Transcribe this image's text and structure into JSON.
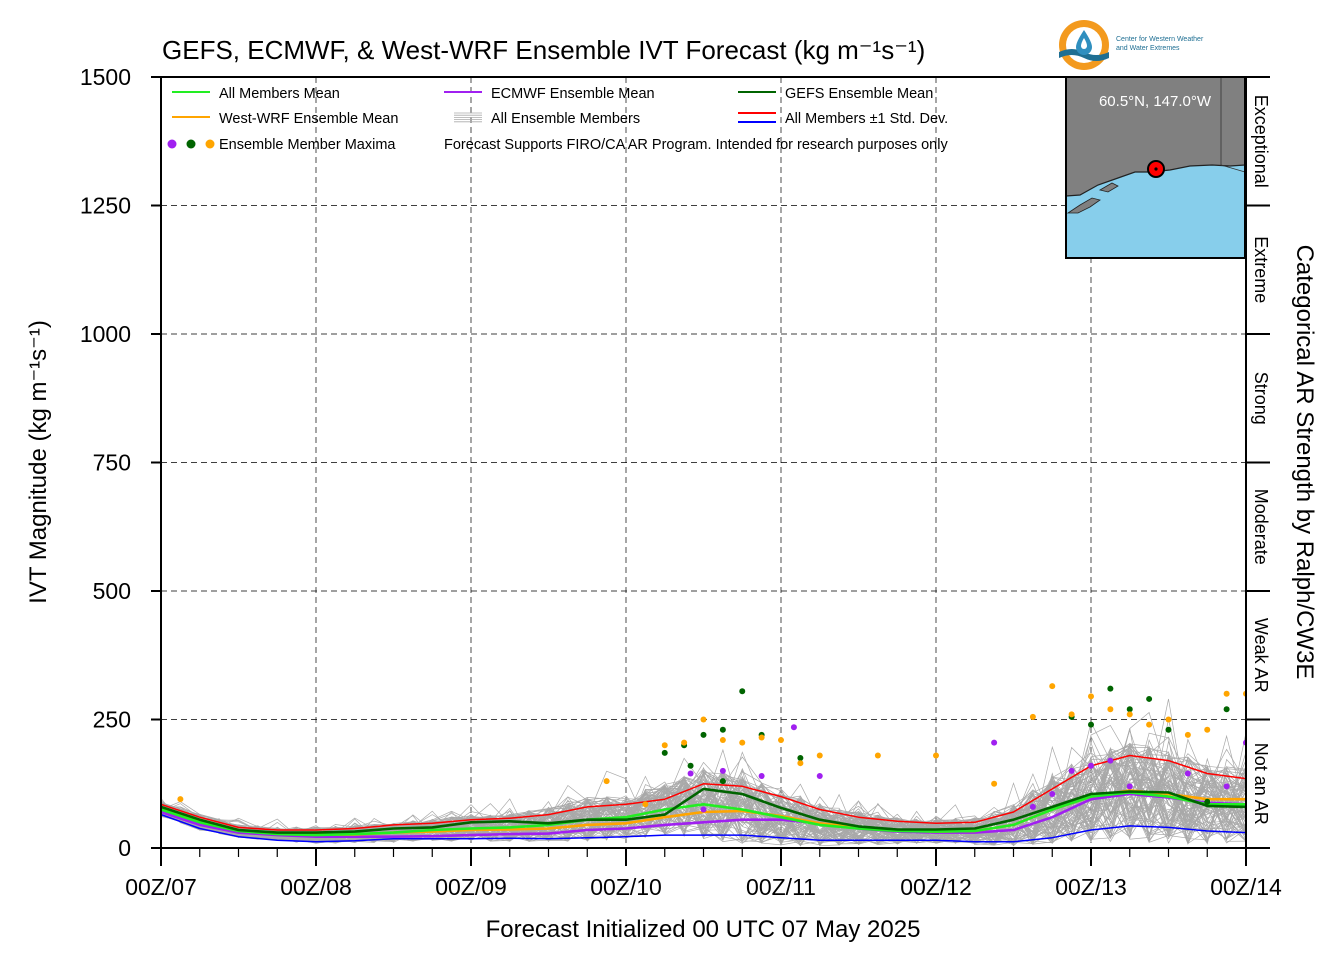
{
  "chart_data": {
    "type": "line",
    "title": "GEFS, ECMWF, & West-WRF Ensemble IVT Forecast (kg m⁻¹s⁻¹)",
    "xlabel": "Forecast Initialized 00 UTC 07 May 2025",
    "ylabel": "IVT Magnitude (kg m⁻¹s⁻¹)",
    "right_label": "Categorical AR Strength by Ralph/CW3E",
    "x_tick_labels": [
      "00Z/07",
      "00Z/08",
      "00Z/09",
      "00Z/10",
      "00Z/11",
      "00Z/12",
      "00Z/13",
      "00Z/14"
    ],
    "x_range_hours": [
      0,
      168
    ],
    "y_ticks": [
      0,
      250,
      500,
      750,
      1000,
      1250,
      1500
    ],
    "ylim": [
      0,
      1500
    ],
    "grid": true,
    "categories": [
      {
        "label": "Not an AR",
        "min": 0,
        "max": 250
      },
      {
        "label": "Weak AR",
        "min": 250,
        "max": 500
      },
      {
        "label": "Moderate",
        "min": 500,
        "max": 750
      },
      {
        "label": "Strong",
        "min": 750,
        "max": 1000
      },
      {
        "label": "Extreme",
        "min": 1000,
        "max": 1250
      },
      {
        "label": "Exceptional",
        "min": 1250,
        "max": 1500
      }
    ],
    "legend": {
      "placement": "top-left",
      "items": [
        {
          "label": "All Members Mean",
          "color": "#22ee22",
          "kind": "line"
        },
        {
          "label": "ECMWF Ensemble Mean",
          "color": "#a020f0",
          "kind": "line"
        },
        {
          "label": "GEFS Ensemble Mean",
          "color": "#006400",
          "kind": "line"
        },
        {
          "label": "West-WRF Ensemble Mean",
          "color": "#ffa500",
          "kind": "line"
        },
        {
          "label": "All Ensemble Members",
          "color": "#aaaaaa",
          "kind": "multiline"
        },
        {
          "label": "All Members ±1 Std. Dev.",
          "color": "#ff0000",
          "color2": "#0000ff",
          "kind": "double"
        },
        {
          "label": "Ensemble Member Maxima",
          "colors": [
            "#a020f0",
            "#006400",
            "#ffa500"
          ],
          "kind": "dots"
        }
      ],
      "note": "Forecast Supports FIRO/CA AR Program. Intended for research purposes only"
    },
    "series": [
      {
        "name": "All Members Mean",
        "color": "#22ee22",
        "x": [
          0,
          6,
          12,
          18,
          24,
          30,
          36,
          42,
          48,
          54,
          60,
          66,
          72,
          78,
          84,
          90,
          96,
          102,
          108,
          114,
          120,
          126,
          132,
          138,
          144,
          150,
          156,
          162,
          168
        ],
        "values": [
          75,
          50,
          33,
          27,
          25,
          27,
          30,
          35,
          38,
          40,
          45,
          55,
          60,
          75,
          85,
          75,
          60,
          45,
          38,
          33,
          32,
          33,
          45,
          75,
          100,
          108,
          100,
          85,
          85
        ]
      },
      {
        "name": "ECMWF Ensemble Mean",
        "color": "#a020f0",
        "x": [
          0,
          6,
          12,
          18,
          24,
          30,
          36,
          42,
          48,
          54,
          60,
          66,
          72,
          78,
          84,
          90,
          96,
          102,
          108,
          114,
          120,
          126,
          132,
          138,
          144,
          150,
          156,
          162,
          168
        ],
        "values": [
          70,
          45,
          30,
          25,
          22,
          22,
          22,
          23,
          25,
          27,
          28,
          35,
          38,
          45,
          50,
          55,
          55,
          48,
          38,
          32,
          30,
          30,
          35,
          60,
          95,
          105,
          98,
          88,
          85
        ]
      },
      {
        "name": "GEFS Ensemble Mean",
        "color": "#006400",
        "x": [
          0,
          6,
          12,
          18,
          24,
          30,
          36,
          42,
          48,
          54,
          60,
          66,
          72,
          78,
          84,
          90,
          96,
          102,
          108,
          114,
          120,
          126,
          132,
          138,
          144,
          150,
          156,
          162,
          168
        ],
        "values": [
          80,
          55,
          35,
          30,
          30,
          32,
          38,
          40,
          50,
          52,
          48,
          55,
          55,
          65,
          115,
          105,
          78,
          55,
          42,
          36,
          36,
          38,
          55,
          80,
          105,
          110,
          108,
          82,
          80
        ]
      },
      {
        "name": "West-WRF Ensemble Mean",
        "color": "#ffa500",
        "x": [
          0,
          6,
          12,
          18,
          24,
          30,
          36,
          42,
          48,
          54,
          60,
          66,
          72,
          78,
          84,
          90,
          96,
          102,
          108,
          114,
          120,
          126,
          132,
          138,
          144,
          150,
          156,
          162,
          168
        ],
        "values": [
          78,
          55,
          35,
          28,
          26,
          26,
          30,
          32,
          35,
          36,
          38,
          45,
          48,
          60,
          70,
          72,
          62,
          48,
          40,
          34,
          32,
          33,
          45,
          75,
          100,
          112,
          105,
          95,
          95
        ]
      },
      {
        "name": "All Members +1 Std. Dev.",
        "color": "#ff0000",
        "x": [
          0,
          6,
          12,
          18,
          24,
          30,
          36,
          42,
          48,
          54,
          60,
          66,
          72,
          78,
          84,
          90,
          96,
          102,
          108,
          114,
          120,
          126,
          132,
          138,
          144,
          150,
          156,
          162,
          168
        ],
        "values": [
          85,
          60,
          40,
          35,
          35,
          38,
          45,
          48,
          55,
          58,
          65,
          80,
          85,
          95,
          125,
          120,
          100,
          75,
          60,
          52,
          48,
          50,
          70,
          115,
          160,
          180,
          170,
          145,
          135
        ]
      },
      {
        "name": "All Members -1 Std. Dev.",
        "color": "#0000ff",
        "x": [
          0,
          6,
          12,
          18,
          24,
          30,
          36,
          42,
          48,
          54,
          60,
          66,
          72,
          78,
          84,
          90,
          96,
          102,
          108,
          114,
          120,
          126,
          132,
          138,
          144,
          150,
          156,
          162,
          168
        ],
        "values": [
          65,
          38,
          22,
          15,
          12,
          14,
          18,
          18,
          18,
          19,
          18,
          20,
          22,
          25,
          25,
          25,
          20,
          15,
          15,
          15,
          15,
          12,
          12,
          20,
          35,
          43,
          40,
          33,
          30
        ]
      }
    ],
    "maxima": {
      "ECMWF": {
        "color": "#a020f0",
        "points": [
          [
            82,
            145
          ],
          [
            84,
            75
          ],
          [
            87,
            150
          ],
          [
            93,
            140
          ],
          [
            98,
            235
          ],
          [
            102,
            140
          ],
          [
            129,
            205
          ],
          [
            135,
            80
          ],
          [
            138,
            105
          ],
          [
            141,
            150
          ],
          [
            144,
            160
          ],
          [
            147,
            170
          ],
          [
            150,
            120
          ],
          [
            159,
            145
          ],
          [
            165,
            120
          ],
          [
            168,
            205
          ]
        ]
      },
      "GEFS": {
        "color": "#006400",
        "points": [
          [
            78,
            185
          ],
          [
            81,
            200
          ],
          [
            82,
            160
          ],
          [
            84,
            220
          ],
          [
            87,
            230
          ],
          [
            87,
            130
          ],
          [
            90,
            305
          ],
          [
            93,
            220
          ],
          [
            99,
            175
          ],
          [
            141,
            255
          ],
          [
            144,
            240
          ],
          [
            147,
            310
          ],
          [
            150,
            270
          ],
          [
            153,
            290
          ],
          [
            156,
            230
          ],
          [
            162,
            90
          ],
          [
            165,
            270
          ]
        ]
      },
      "West-WRF": {
        "color": "#ffa500",
        "points": [
          [
            3,
            95
          ],
          [
            69,
            130
          ],
          [
            75,
            85
          ],
          [
            78,
            200
          ],
          [
            81,
            205
          ],
          [
            84,
            250
          ],
          [
            87,
            210
          ],
          [
            90,
            205
          ],
          [
            93,
            215
          ],
          [
            96,
            210
          ],
          [
            99,
            165
          ],
          [
            102,
            180
          ],
          [
            111,
            180
          ],
          [
            120,
            180
          ],
          [
            129,
            125
          ],
          [
            135,
            255
          ],
          [
            138,
            315
          ],
          [
            141,
            260
          ],
          [
            144,
            295
          ],
          [
            147,
            270
          ],
          [
            150,
            260
          ],
          [
            153,
            240
          ],
          [
            156,
            250
          ],
          [
            159,
            220
          ],
          [
            162,
            230
          ],
          [
            165,
            300
          ],
          [
            168,
            300
          ]
        ]
      }
    },
    "inset": {
      "label": "60.5°N, 147.0°W"
    },
    "logo": {
      "line1": "Center for Western Weather",
      "line2": "and Water Extremes"
    }
  }
}
